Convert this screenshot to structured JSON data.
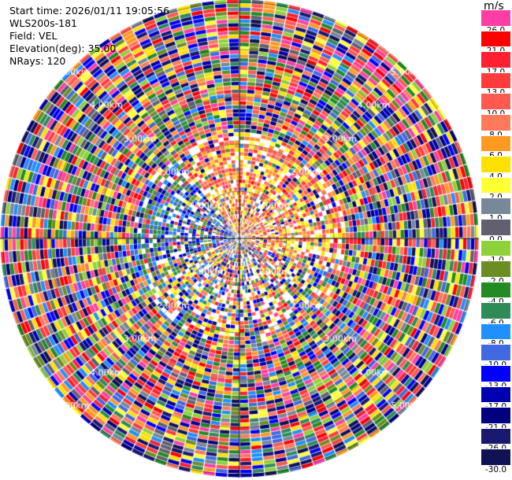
{
  "info": {
    "start_time": "Start time: 2026/01/11 19:05:56",
    "instrument": "WLS200s-181",
    "field": "Field: VEL",
    "elevation": "Elevation(deg): 35.00",
    "nrays": "NRays: 120"
  },
  "range_ring_labels": [
    "1.00km",
    "2.00km",
    "3.00km",
    "4.00km",
    "5.00km"
  ],
  "colorbar": {
    "unit": "m/s",
    "ticks": [
      "26.0",
      "21.0",
      "17.0",
      "13.0",
      "10.0",
      "8.0",
      "6.0",
      "4.0",
      "2.0",
      "1.0",
      "0.0",
      "-1.0",
      "-2.0",
      "-4.0",
      "-6.0",
      "-8.0",
      "-10.0",
      "-13.0",
      "-17.0",
      "-21.0",
      "-26.0",
      "-30.0"
    ],
    "colors": [
      "#ff3ea5",
      "#ff0000",
      "#ff2030",
      "#ff3b3b",
      "#ff5a50",
      "#ff7a5a",
      "#ff9a20",
      "#ffe000",
      "#ffff33",
      "#778899",
      "#606070",
      "#8ed13a",
      "#6b8e23",
      "#228b22",
      "#2e8b57",
      "#1e90ff",
      "#4169e1",
      "#0000ff",
      "#0000b0",
      "#000080",
      "#191970",
      "#111155"
    ]
  }
}
